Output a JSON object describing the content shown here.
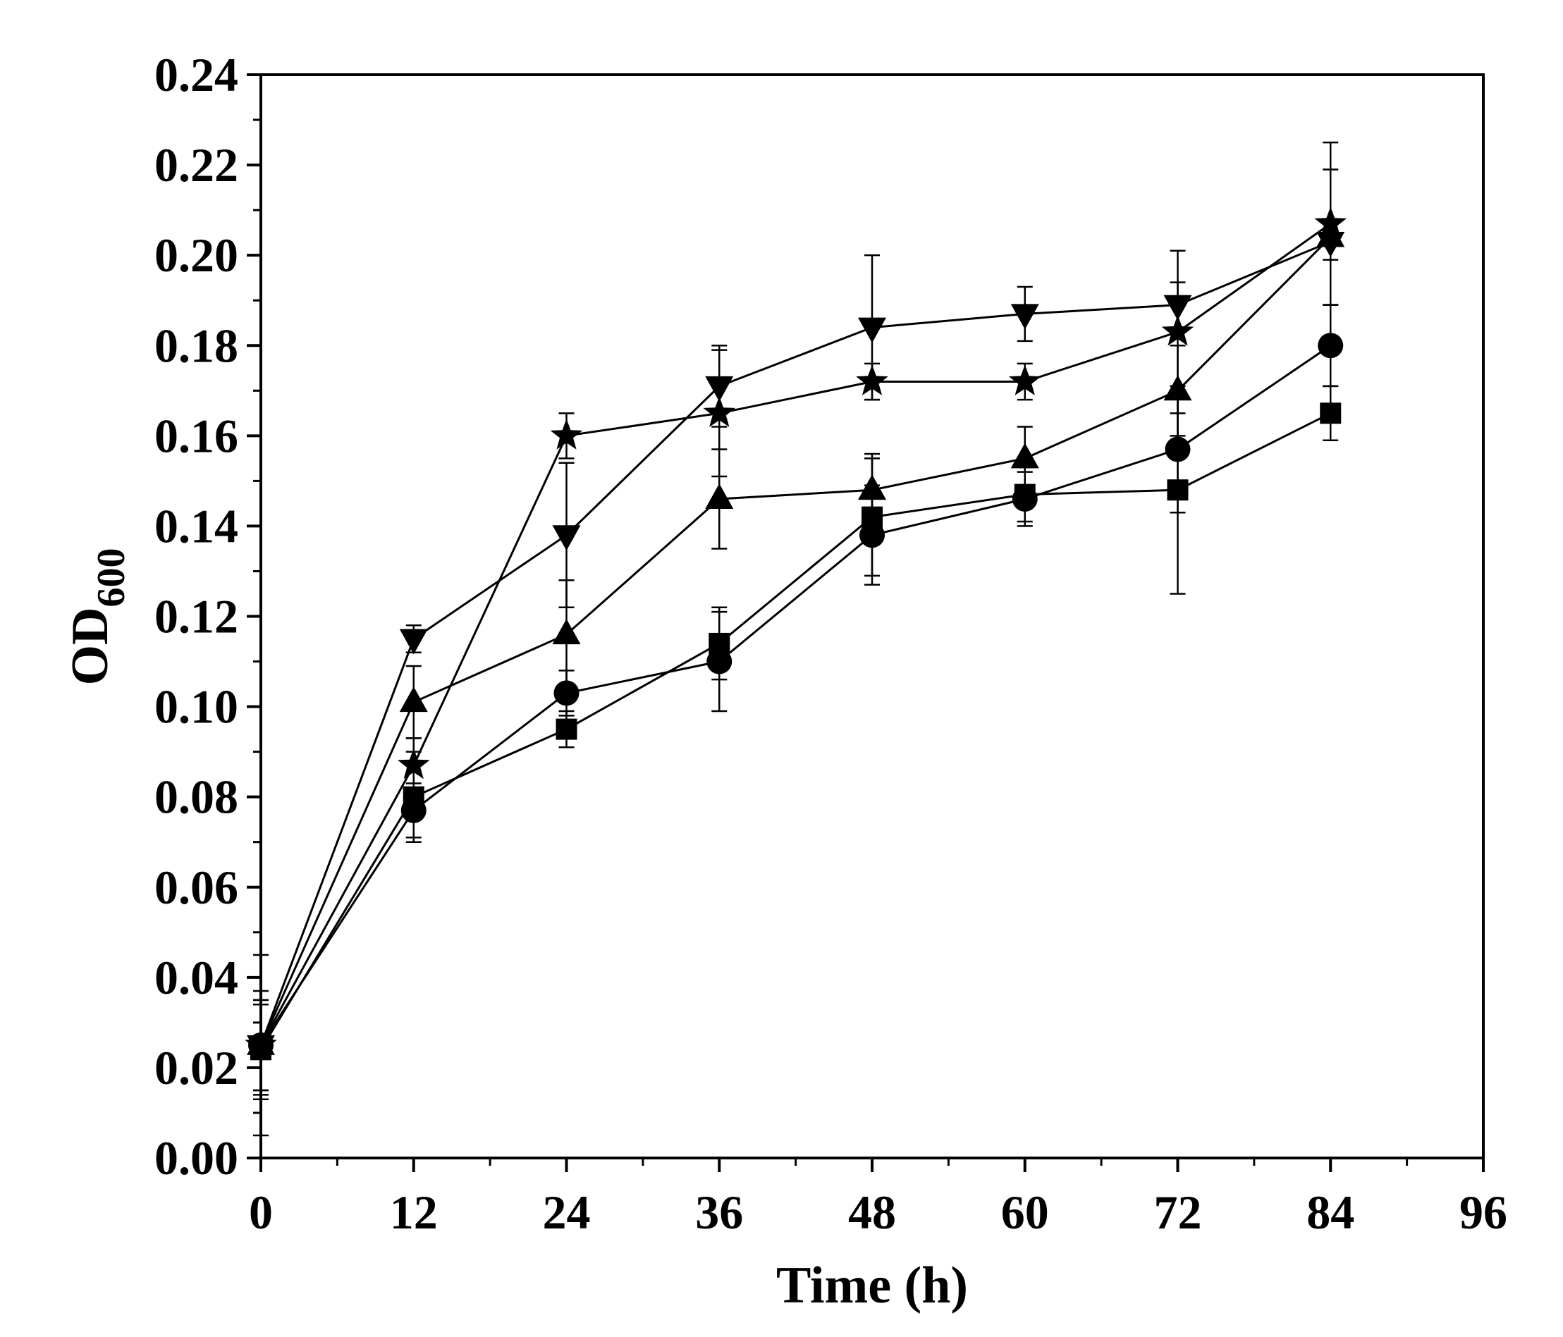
{
  "chart_data": {
    "type": "line",
    "title": "",
    "xlabel": "Time (h)",
    "ylabel": {
      "main": "OD",
      "subscript": "600"
    },
    "xlim": [
      0,
      96
    ],
    "ylim": [
      0,
      0.24
    ],
    "xticks": [
      0,
      12,
      24,
      36,
      48,
      60,
      72,
      84,
      96
    ],
    "xtick_labels": [
      "0",
      "12",
      "24",
      "36",
      "48",
      "60",
      "72",
      "84",
      "96"
    ],
    "yticks": [
      0,
      0.02,
      0.04,
      0.06,
      0.08,
      0.1,
      0.12,
      0.14,
      0.16,
      0.18,
      0.2,
      0.22,
      0.24
    ],
    "ytick_labels": [
      "0.00",
      "0.02",
      "0.04",
      "0.06",
      "0.08",
      "0.10",
      "0.12",
      "0.14",
      "0.16",
      "0.18",
      "0.20",
      "0.22",
      "0.24"
    ],
    "grid": false,
    "legend": "none",
    "color": "#000000",
    "x": [
      0,
      12,
      24,
      36,
      48,
      60,
      72,
      84
    ],
    "series": [
      {
        "name": "square",
        "marker": "square",
        "values": [
          0.024,
          0.08,
          0.095,
          0.114,
          0.142,
          0.147,
          0.148,
          0.165
        ],
        "errors": [
          0.01,
          0.01,
          0.004,
          0.008,
          0.013,
          0.006,
          0.023,
          0.006
        ]
      },
      {
        "name": "circle",
        "marker": "circle",
        "values": [
          0.025,
          0.077,
          0.103,
          0.11,
          0.138,
          0.146,
          0.157,
          0.18
        ],
        "errors": [
          0.01,
          0.006,
          0.005,
          0.011,
          0.011,
          0.006,
          0.014,
          0.009
        ]
      },
      {
        "name": "triangle-up",
        "marker": "triangle-up",
        "values": [
          0.025,
          0.101,
          0.116,
          0.146,
          0.148,
          0.155,
          0.17,
          0.204
        ],
        "errors": [
          0.012,
          0.008,
          0.012,
          0.011,
          0.008,
          0.007,
          0.01,
          0.015
        ]
      },
      {
        "name": "triangle-down",
        "marker": "triangle-down",
        "values": [
          0.025,
          0.115,
          0.138,
          0.171,
          0.184,
          0.187,
          0.189,
          0.203
        ],
        "errors": [
          0.02,
          0.003,
          0.016,
          0.009,
          0.016,
          0.006,
          0.005,
          0.004
        ]
      },
      {
        "name": "star",
        "marker": "star",
        "values": [
          0.025,
          0.087,
          0.16,
          0.165,
          0.172,
          0.172,
          0.183,
          0.207
        ],
        "errors": [
          0.01,
          0.006,
          0.005,
          0.014,
          0.004,
          0.004,
          0.018,
          0.018
        ]
      }
    ]
  }
}
